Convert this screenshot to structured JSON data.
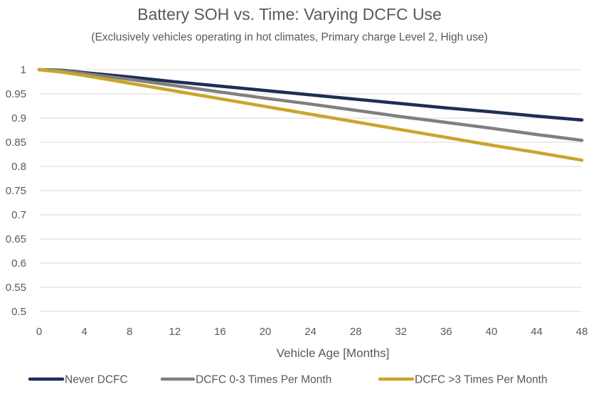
{
  "chart_data": {
    "type": "line",
    "title": "Battery SOH vs. Time: Varying DCFC Use",
    "subtitle": "(Exclusively vehicles operating in hot climates, Primary charge Level 2, High use)",
    "xlabel": "Vehicle Age [Months]",
    "ylabel": "",
    "xlim": [
      0,
      48
    ],
    "ylim": [
      0.5,
      1
    ],
    "x_ticks": [
      0,
      4,
      8,
      12,
      16,
      20,
      24,
      28,
      32,
      36,
      40,
      44,
      48
    ],
    "y_ticks": [
      0.5,
      0.55,
      0.6,
      0.65,
      0.7,
      0.75,
      0.8,
      0.85,
      0.9,
      0.95,
      1
    ],
    "y_tick_labels": [
      "0.5",
      "0.55",
      "0.6",
      "0.65",
      "0.7",
      "0.75",
      "0.8",
      "0.85",
      "0.9",
      "0.95",
      "1"
    ],
    "grid": true,
    "legend_position": "bottom",
    "series": [
      {
        "name": "Never DCFC",
        "color": "#1f2d56",
        "x": [
          0,
          2,
          4,
          8,
          12,
          16,
          20,
          24,
          28,
          32,
          36,
          40,
          44,
          48
        ],
        "values": [
          1.0,
          0.999,
          0.994,
          0.985,
          0.975,
          0.966,
          0.957,
          0.948,
          0.939,
          0.93,
          0.921,
          0.913,
          0.904,
          0.896
        ]
      },
      {
        "name": "DCFC 0-3 Times Per Month",
        "color": "#808080",
        "x": [
          0,
          2,
          4,
          8,
          12,
          16,
          20,
          24,
          28,
          32,
          36,
          40,
          44,
          48
        ],
        "values": [
          1.0,
          0.998,
          0.992,
          0.98,
          0.967,
          0.954,
          0.941,
          0.929,
          0.916,
          0.903,
          0.891,
          0.879,
          0.866,
          0.854
        ]
      },
      {
        "name": "DCFC >3 Times Per Month",
        "color": "#c9a52a",
        "x": [
          0,
          2,
          4,
          8,
          12,
          16,
          20,
          24,
          28,
          32,
          36,
          40,
          44,
          48
        ],
        "values": [
          1.0,
          0.995,
          0.988,
          0.972,
          0.956,
          0.94,
          0.924,
          0.908,
          0.892,
          0.876,
          0.86,
          0.844,
          0.829,
          0.813
        ]
      }
    ]
  }
}
